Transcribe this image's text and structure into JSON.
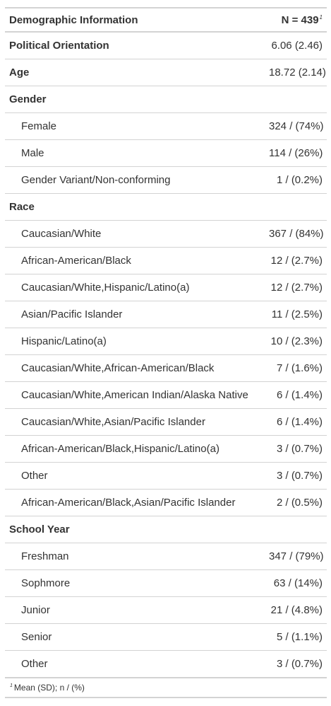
{
  "header": {
    "label": "Demographic Information",
    "stat": "N = 439",
    "footnote_mark": "1"
  },
  "rows": [
    {
      "type": "group",
      "label": "Political Orientation",
      "value": "6.06 (2.46)"
    },
    {
      "type": "group",
      "label": "Age",
      "value": "18.72 (2.14)"
    },
    {
      "type": "group",
      "label": "Gender",
      "value": ""
    },
    {
      "type": "sub",
      "label": "Female",
      "value": "324 / (74%)"
    },
    {
      "type": "sub",
      "label": "Male",
      "value": "114 / (26%)"
    },
    {
      "type": "sub",
      "label": "Gender Variant/Non-conforming",
      "value": "1 / (0.2%)"
    },
    {
      "type": "group",
      "label": "Race",
      "value": ""
    },
    {
      "type": "sub",
      "label": "Caucasian/White",
      "value": "367 / (84%)"
    },
    {
      "type": "sub",
      "label": "African-American/Black",
      "value": "12 / (2.7%)"
    },
    {
      "type": "sub",
      "label": "Caucasian/White,Hispanic/Latino(a)",
      "value": "12 / (2.7%)"
    },
    {
      "type": "sub",
      "label": "Asian/Pacific Islander",
      "value": "11 / (2.5%)"
    },
    {
      "type": "sub",
      "label": "Hispanic/Latino(a)",
      "value": "10 / (2.3%)"
    },
    {
      "type": "sub",
      "label": "Caucasian/White,African-American/Black",
      "value": "7 / (1.6%)"
    },
    {
      "type": "sub",
      "label": "Caucasian/White,American Indian/Alaska Native",
      "value": "6 / (1.4%)"
    },
    {
      "type": "sub",
      "label": "Caucasian/White,Asian/Pacific Islander",
      "value": "6 / (1.4%)"
    },
    {
      "type": "sub",
      "label": "African-American/Black,Hispanic/Latino(a)",
      "value": "3 / (0.7%)"
    },
    {
      "type": "sub",
      "label": "Other",
      "value": "3 / (0.7%)"
    },
    {
      "type": "sub",
      "label": "African-American/Black,Asian/Pacific Islander",
      "value": "2 / (0.5%)"
    },
    {
      "type": "group",
      "label": "School Year",
      "value": ""
    },
    {
      "type": "sub",
      "label": "Freshman",
      "value": "347 / (79%)"
    },
    {
      "type": "sub",
      "label": "Sophmore",
      "value": "63 / (14%)"
    },
    {
      "type": "sub",
      "label": "Junior",
      "value": "21 / (4.8%)"
    },
    {
      "type": "sub",
      "label": "Senior",
      "value": "5 / (1.1%)"
    },
    {
      "type": "sub",
      "label": "Other",
      "value": "3 / (0.7%)"
    }
  ],
  "footnote": {
    "mark": "1",
    "text": "Mean (SD); n / (%)"
  }
}
